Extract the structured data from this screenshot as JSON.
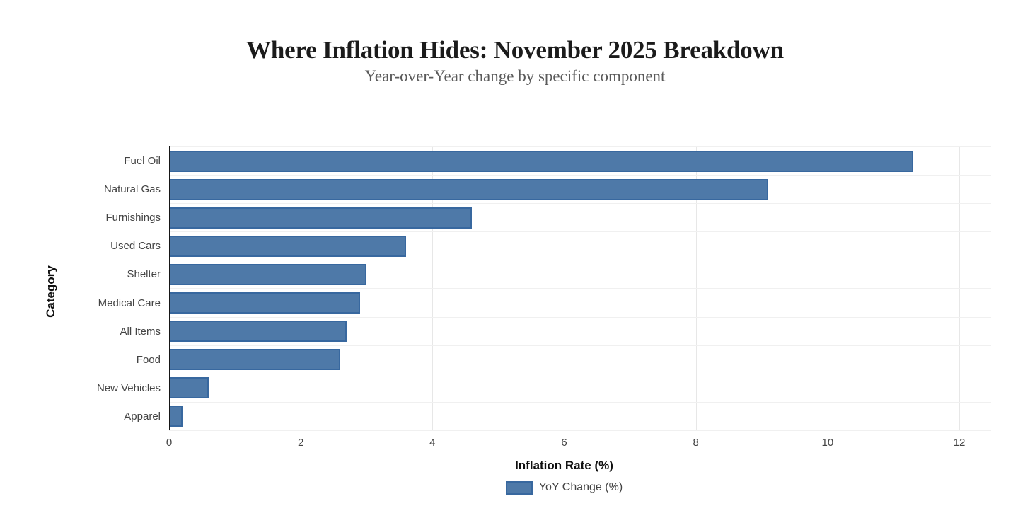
{
  "header": {
    "title": "Where Inflation Hides: November 2025 Breakdown",
    "subtitle": "Year-over-Year change by specific component"
  },
  "chart_data": {
    "type": "bar",
    "orientation": "horizontal",
    "title": "Where Inflation Hides: November 2025 Breakdown",
    "subtitle": "Year-over-Year change by specific component",
    "categories": [
      "Fuel Oil",
      "Natural Gas",
      "Furnishings",
      "Used Cars",
      "Shelter",
      "Medical Care",
      "All Items",
      "Food",
      "New Vehicles",
      "Apparel"
    ],
    "values": [
      11.3,
      9.1,
      4.6,
      3.6,
      3.0,
      2.9,
      2.7,
      2.6,
      0.6,
      0.2
    ],
    "series_name": "YoY Change (%)",
    "xlabel": "Inflation Rate (%)",
    "ylabel": "Category",
    "xlim": [
      0,
      12
    ],
    "xticks": [
      0,
      2,
      4,
      6,
      8,
      10,
      12
    ],
    "grid": "vertical-only",
    "legend_position": "bottom-center",
    "bar_color": "#4e79a8",
    "bar_border_color": "#38689f",
    "axis_line_color": "#161616",
    "gridline_color": "#e7e7e7",
    "label_color": "#444444"
  }
}
